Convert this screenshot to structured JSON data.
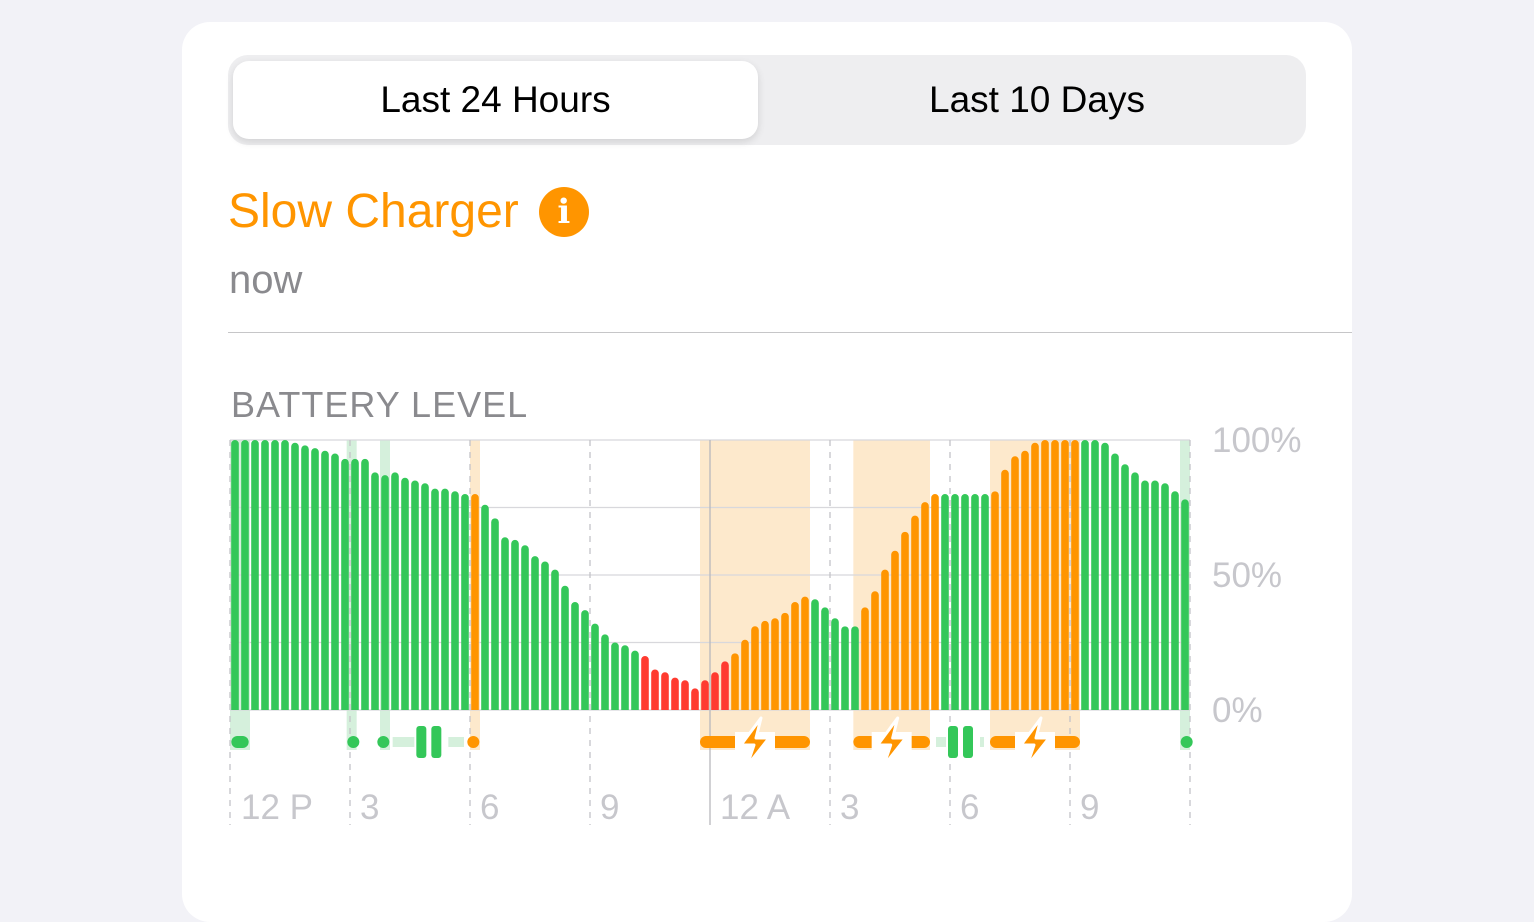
{
  "segmented": {
    "options": [
      "Last 24 Hours",
      "Last 10 Days"
    ],
    "selected": 0
  },
  "status": {
    "title": "Slow Charger",
    "icon": "info-icon",
    "time": "now"
  },
  "section_title": "BATTERY LEVEL",
  "colors": {
    "normal": "#34c759",
    "charging": "#ff9500",
    "low": "#ff3b30",
    "charging_shade": "#fde9cc",
    "active_shade": "#d5f0dc"
  },
  "chart_data": {
    "type": "bar",
    "title": "BATTERY LEVEL",
    "interval_minutes": 15,
    "x_tick_labels": [
      "12 P",
      "3",
      "6",
      "9",
      "12 A",
      "3",
      "6",
      "9"
    ],
    "y_tick_labels": [
      "100%",
      "50%",
      "0%"
    ],
    "ylim": [
      0,
      100
    ],
    "grid": true,
    "values": [
      100,
      100,
      100,
      100,
      100,
      100,
      99,
      98,
      97,
      96,
      95,
      93,
      93,
      93,
      88,
      87,
      88,
      86,
      85,
      84,
      82,
      82,
      81,
      80,
      80,
      76,
      71,
      64,
      63,
      61,
      57,
      55,
      52,
      46,
      40,
      37,
      32,
      28,
      25,
      24,
      22,
      20,
      15,
      14,
      12,
      11,
      8,
      11,
      14,
      18,
      21,
      26,
      31,
      33,
      34,
      36,
      40,
      42,
      41,
      38,
      34,
      31,
      31,
      38,
      44,
      52,
      59,
      66,
      72,
      77,
      80,
      80,
      80,
      80,
      80,
      80,
      81,
      89,
      94,
      96,
      99,
      100,
      100,
      100,
      100,
      100,
      100,
      99,
      95,
      91,
      88,
      85,
      85,
      84,
      81,
      78
    ],
    "state_runs": [
      {
        "state": "normal",
        "count": 24
      },
      {
        "state": "charging",
        "count": 1
      },
      {
        "state": "normal",
        "count": 16
      },
      {
        "state": "low",
        "count": 9
      },
      {
        "state": "charging",
        "count": 8
      },
      {
        "state": "normal",
        "count": 5
      },
      {
        "state": "charging",
        "count": 8
      },
      {
        "state": "normal",
        "count": 5
      },
      {
        "state": "charging",
        "count": 9
      },
      {
        "state": "normal",
        "count": 11
      }
    ],
    "shaded_periods": [
      {
        "type": "active",
        "start": "12:00",
        "end": "12:30"
      },
      {
        "type": "active",
        "start": "14:55",
        "end": "15:10"
      },
      {
        "type": "active",
        "start": "15:45",
        "end": "16:00"
      },
      {
        "type": "charging",
        "start": "18:00",
        "end": "18:15"
      },
      {
        "type": "charging",
        "start": "23:45",
        "end": "02:30"
      },
      {
        "type": "charging",
        "start": "03:35",
        "end": "05:30"
      },
      {
        "type": "charging",
        "start": "07:00",
        "end": "09:15"
      },
      {
        "type": "active",
        "start": "11:45",
        "end": "12:00"
      }
    ],
    "indicators": [
      {
        "type": "active",
        "start": "12:05",
        "end": "12:25"
      },
      {
        "type": "active-dot",
        "start": "15:05",
        "end": "15:05"
      },
      {
        "type": "active-dot",
        "start": "15:50",
        "end": "15:50"
      },
      {
        "type": "paused",
        "start": "15:55",
        "end": "18:00"
      },
      {
        "type": "charging-dot",
        "start": "18:05",
        "end": "18:05"
      },
      {
        "type": "charging",
        "start": "23:45",
        "end": "02:30"
      },
      {
        "type": "charging",
        "start": "03:35",
        "end": "05:30"
      },
      {
        "type": "paused",
        "start": "05:30",
        "end": "07:00"
      },
      {
        "type": "charging",
        "start": "07:00",
        "end": "09:15"
      },
      {
        "type": "active-dot",
        "start": "11:55",
        "end": "11:55"
      }
    ]
  }
}
